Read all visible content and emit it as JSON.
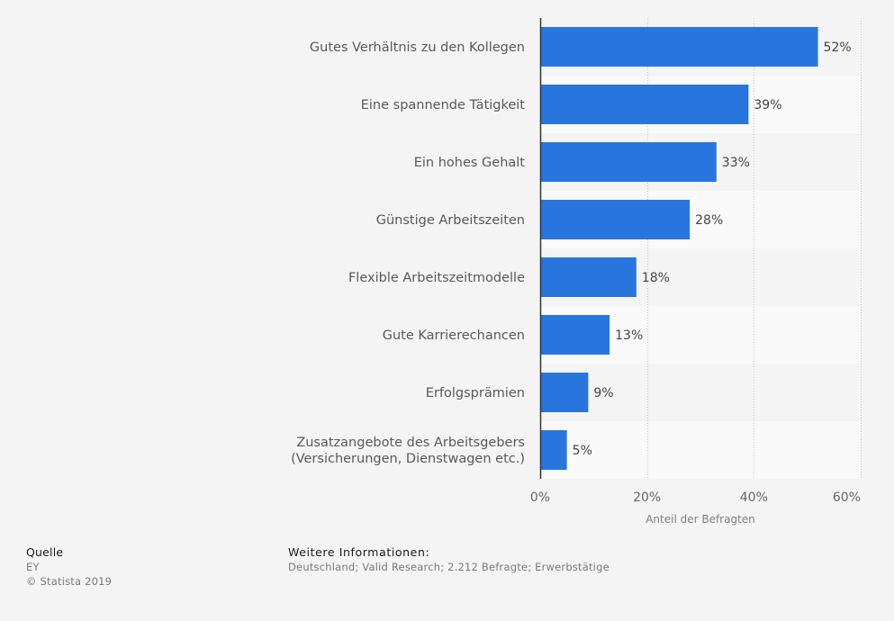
{
  "chart_data": {
    "type": "bar",
    "orientation": "horizontal",
    "categories": [
      [
        "Gutes Verhältnis zu den Kollegen"
      ],
      [
        "Eine spannende Tätigkeit"
      ],
      [
        "Ein hohes Gehalt"
      ],
      [
        "Günstige Arbeitszeiten"
      ],
      [
        "Flexible Arbeitszeitmodelle"
      ],
      [
        "Gute Karrierechancen"
      ],
      [
        "Erfolgsprämien"
      ],
      [
        "Zusatzangebote des Arbeitsgebers",
        "(Versicherungen, Dienstwagen etc.)"
      ]
    ],
    "values": [
      52,
      39,
      33,
      28,
      18,
      13,
      9,
      5
    ],
    "value_labels": [
      "52%",
      "39%",
      "33%",
      "28%",
      "18%",
      "13%",
      "9%",
      "5%"
    ],
    "xlim": [
      0,
      60
    ],
    "xticks": [
      0,
      20,
      40,
      60
    ],
    "xtick_labels": [
      "0%",
      "20%",
      "40%",
      "60%"
    ],
    "xlabel": "Anteil der Befragten",
    "ylabel": "",
    "grid": true,
    "colors": {
      "bar": "#2876dd",
      "band_light": "#f9f9f9",
      "band_dark": "#f4f4f4",
      "axis": "#333333",
      "grid": "#c8c8c8"
    }
  },
  "footer": {
    "source_title": "Quelle",
    "source_name": "EY",
    "copyright": "© Statista 2019",
    "info_title": "Weitere Informationen:",
    "info_text": "Deutschland; Valid Research; 2.212 Befragte; Erwerbstätige"
  }
}
